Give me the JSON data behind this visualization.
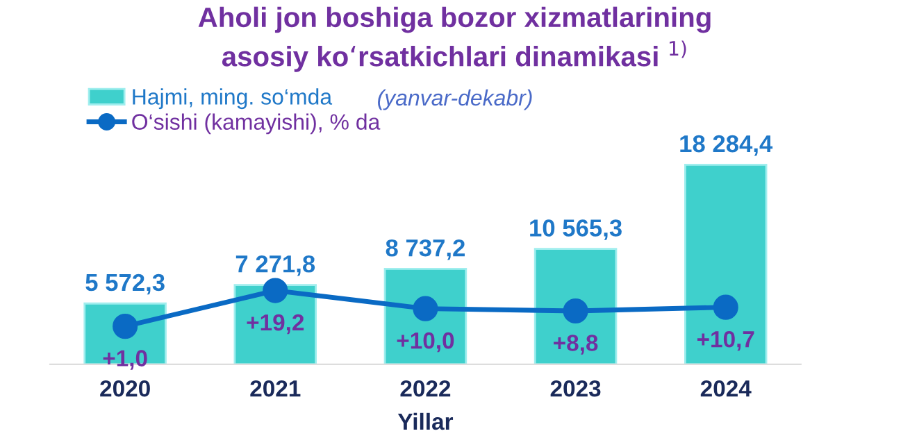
{
  "chart_data": {
    "type": "bar",
    "title": "Aholi jon boshiga bozor xizmatlarining\nasosiy ko‘rsatkichlari dinamikasi $^{1)}$",
    "subtitle": "(yanvar-dekabr)",
    "xlabel": "Yillar",
    "categories": [
      "2020",
      "2021",
      "2022",
      "2023",
      "2024"
    ],
    "series": [
      {
        "name": "Hajmi, ming. so‘mda",
        "color": "#3fd0cc",
        "values": [
          5572.3,
          7271.8,
          8737.2,
          10565.3,
          18284.4
        ],
        "value_labels": [
          "5 572,3",
          "7 271,8",
          "8 737,2",
          "10 565,3",
          "18 284,4"
        ]
      },
      {
        "name": "O‘sishi (kamayishi), % da",
        "type": "line",
        "axis": "y2",
        "color": "#0a6ac4",
        "marker": "circle",
        "values": [
          1.0,
          19.2,
          10.0,
          8.8,
          10.7
        ],
        "value_labels": [
          "+1,0",
          "+19,2",
          "+10,0",
          "+8,8",
          "+10,7"
        ]
      }
    ],
    "tick_labels": "x",
    "grid": false,
    "legend": "top left"
  }
}
